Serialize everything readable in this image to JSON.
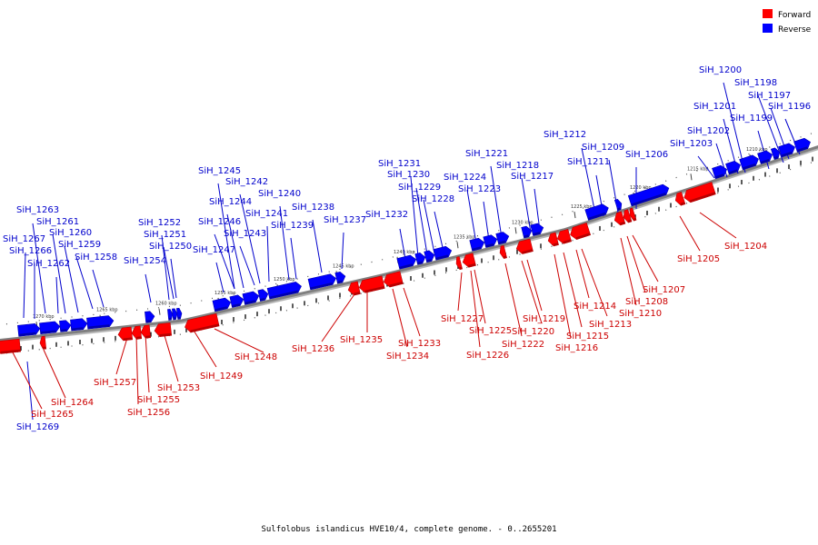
{
  "caption": "Sulfolobus islandicus HVE10/4, complete genome. - 0..2655201",
  "colors": {
    "forward": "#ff0000",
    "reverse": "#0000ff",
    "forward_label": "#cc0000",
    "reverse_label": "#0000cc",
    "backbone": "#7f7f7f"
  },
  "legend": [
    {
      "label": "Forward",
      "color": "#ff0000"
    },
    {
      "label": "Reverse",
      "color": "#0000ff"
    }
  ],
  "ticks": [
    "1270 kbp",
    "1265 kbp",
    "1260 kbp",
    "1255 kbp",
    "1250 kbp",
    "1245 kbp",
    "1240 kbp",
    "1235 kbp",
    "1230 kbp",
    "1225 kbp",
    "1220 kbp",
    "1215 kbp",
    "1210 kbp"
  ],
  "reverse_genes": [
    "SiH_1269",
    "SiH_1267",
    "SiH_1266",
    "SiH_1263",
    "SiH_1262",
    "SiH_1261",
    "SiH_1260",
    "SiH_1259",
    "SiH_1258",
    "SiH_1254",
    "SiH_1252",
    "SiH_1251",
    "SiH_1250",
    "SiH_1247",
    "SiH_1246",
    "SiH_1245",
    "SiH_1244",
    "SiH_1243",
    "SiH_1242",
    "SiH_1241",
    "SiH_1240",
    "SiH_1239",
    "SiH_1238",
    "SiH_1237",
    "SiH_1232",
    "SiH_1231",
    "SiH_1230",
    "SiH_1229",
    "SiH_1228",
    "SiH_1224",
    "SiH_1223",
    "SiH_1221",
    "SiH_1218",
    "SiH_1217",
    "SiH_1212",
    "SiH_1211",
    "SiH_1209",
    "SiH_1206",
    "SiH_1203",
    "SiH_1202",
    "SiH_1201",
    "SiH_1200",
    "SiH_1199",
    "SiH_1198",
    "SiH_1197",
    "SiH_1196"
  ],
  "forward_genes": [
    "SiH_1265",
    "SiH_1264",
    "SiH_1257",
    "SiH_1256",
    "SiH_1255",
    "SiH_1253",
    "SiH_1249",
    "SiH_1248",
    "SiH_1236",
    "SiH_1235",
    "SiH_1234",
    "SiH_1233",
    "SiH_1227",
    "SiH_1226",
    "SiH_1225",
    "SiH_1222",
    "SiH_1220",
    "SiH_1219",
    "SiH_1216",
    "SiH_1215",
    "SiH_1214",
    "SiH_1213",
    "SiH_1210",
    "SiH_1208",
    "SiH_1207",
    "SiH_1205",
    "SiH_1204"
  ]
}
